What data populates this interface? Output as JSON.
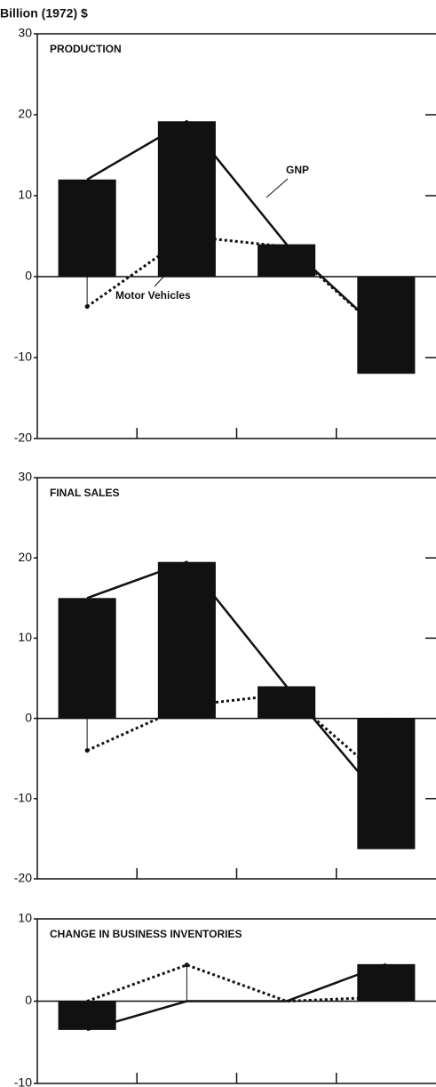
{
  "chart_data": [
    {
      "type": "bar",
      "y_label": "Billion (1972) $",
      "title": "PRODUCTION",
      "categories": [
        null,
        null,
        null,
        null
      ],
      "series": [
        {
          "type": "bar",
          "color": "#111111",
          "values": [
            12,
            19.2,
            4,
            -12
          ]
        },
        {
          "name": "GNP",
          "type": "line",
          "style": "solid",
          "color": "#111111",
          "values": [
            12,
            19.2,
            4,
            -7.3
          ]
        },
        {
          "name": "Motor Vehicles",
          "type": "line",
          "style": "dotted",
          "color": "#111111",
          "values": [
            -3.7,
            5,
            3.7,
            -7.3
          ]
        }
      ],
      "ylim": [
        -20,
        30
      ],
      "yticks": [
        -20,
        -10,
        0,
        10,
        20,
        30
      ]
    },
    {
      "type": "bar",
      "title": "FINAL SALES",
      "categories": [
        null,
        null,
        null,
        null
      ],
      "series": [
        {
          "type": "bar",
          "color": "#111111",
          "values": [
            15,
            19.5,
            4,
            -16.3
          ]
        },
        {
          "type": "line",
          "style": "solid",
          "color": "#111111",
          "values": [
            15,
            19.5,
            4,
            -10.8
          ]
        },
        {
          "type": "line",
          "style": "dotted",
          "color": "#111111",
          "values": [
            -4,
            1.6,
            3,
            -7.8
          ]
        }
      ],
      "ylim": [
        -20,
        30
      ],
      "yticks": [
        -20,
        -10,
        0,
        10,
        20,
        30
      ]
    },
    {
      "type": "bar",
      "title": "CHANGE IN BUSINESS INVENTORIES",
      "categories": [
        null,
        null,
        null,
        null
      ],
      "series": [
        {
          "type": "bar",
          "color": "#111111",
          "values": [
            -3.5,
            0,
            0,
            4.5
          ]
        },
        {
          "type": "line",
          "style": "solid",
          "color": "#111111",
          "values": [
            -3.5,
            0,
            0,
            4.5
          ]
        },
        {
          "type": "line",
          "style": "dotted",
          "color": "#111111",
          "values": [
            0,
            4.4,
            0,
            0.5
          ]
        }
      ],
      "ylim": [
        -10,
        10
      ],
      "yticks": [
        -10,
        0,
        10
      ]
    }
  ]
}
